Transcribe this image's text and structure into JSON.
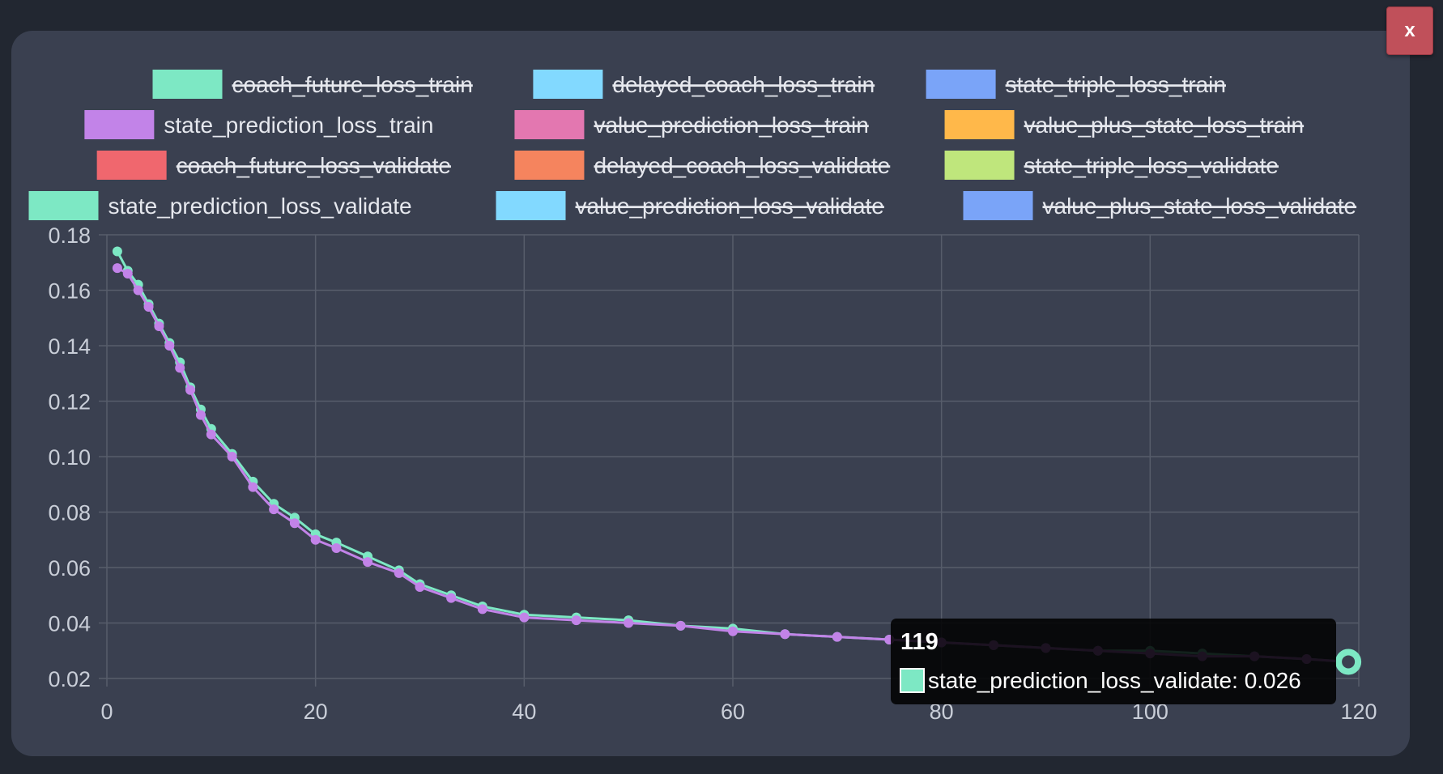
{
  "close_button": {
    "label": "x"
  },
  "chart_data": {
    "type": "line",
    "xlim": [
      0,
      120
    ],
    "ylim": [
      0.02,
      0.18
    ],
    "x_ticks": [
      0,
      20,
      40,
      60,
      80,
      100,
      120
    ],
    "y_ticks": [
      "0.02",
      "0.04",
      "0.06",
      "0.08",
      "0.10",
      "0.12",
      "0.14",
      "0.16",
      "0.18"
    ],
    "grid": true,
    "legend_position": "top",
    "legend": [
      {
        "name": "coach_future_loss_train",
        "color": "#7de8c4",
        "hidden": true
      },
      {
        "name": "delayed_coach_loss_train",
        "color": "#82d9ff",
        "hidden": true
      },
      {
        "name": "state_triple_loss_train",
        "color": "#7aa4f8",
        "hidden": true
      },
      {
        "name": "state_prediction_loss_train",
        "color": "#c283e8",
        "hidden": false
      },
      {
        "name": "value_prediction_loss_train",
        "color": "#e377b0",
        "hidden": true
      },
      {
        "name": "value_plus_state_loss_train",
        "color": "#ffb84a",
        "hidden": true
      },
      {
        "name": "coach_future_loss_validate",
        "color": "#f0676e",
        "hidden": true
      },
      {
        "name": "delayed_coach_loss_validate",
        "color": "#f5845e",
        "hidden": true
      },
      {
        "name": "state_triple_loss_validate",
        "color": "#bfe67c",
        "hidden": true
      },
      {
        "name": "state_prediction_loss_validate",
        "color": "#7de8c4",
        "hidden": false
      },
      {
        "name": "value_prediction_loss_validate",
        "color": "#82d9ff",
        "hidden": true
      },
      {
        "name": "value_plus_state_loss_validate",
        "color": "#7aa4f8",
        "hidden": true
      }
    ],
    "series": [
      {
        "name": "state_prediction_loss_validate",
        "color": "#7de8c4",
        "x": [
          1,
          2,
          3,
          4,
          5,
          6,
          7,
          8,
          9,
          10,
          12,
          14,
          16,
          18,
          20,
          22,
          25,
          28,
          30,
          33,
          36,
          40,
          45,
          50,
          55,
          60,
          65,
          70,
          75,
          80,
          85,
          90,
          95,
          100,
          105,
          110,
          115,
          119
        ],
        "values": [
          0.174,
          0.167,
          0.162,
          0.155,
          0.148,
          0.141,
          0.134,
          0.125,
          0.117,
          0.11,
          0.101,
          0.091,
          0.083,
          0.078,
          0.072,
          0.069,
          0.064,
          0.059,
          0.054,
          0.05,
          0.046,
          0.043,
          0.042,
          0.041,
          0.039,
          0.038,
          0.036,
          0.035,
          0.034,
          0.033,
          0.032,
          0.031,
          0.03,
          0.03,
          0.029,
          0.028,
          0.027,
          0.026
        ]
      },
      {
        "name": "state_prediction_loss_train",
        "color": "#c283e8",
        "x": [
          1,
          2,
          3,
          4,
          5,
          6,
          7,
          8,
          9,
          10,
          12,
          14,
          16,
          18,
          20,
          22,
          25,
          28,
          30,
          33,
          36,
          40,
          45,
          50,
          55,
          60,
          65,
          70,
          75,
          80,
          85,
          90,
          95,
          100,
          105,
          110,
          115,
          119
        ],
        "values": [
          0.168,
          0.166,
          0.16,
          0.154,
          0.147,
          0.14,
          0.132,
          0.124,
          0.115,
          0.108,
          0.1,
          0.089,
          0.081,
          0.076,
          0.07,
          0.067,
          0.062,
          0.058,
          0.053,
          0.049,
          0.045,
          0.042,
          0.041,
          0.04,
          0.039,
          0.037,
          0.036,
          0.035,
          0.034,
          0.033,
          0.032,
          0.031,
          0.03,
          0.029,
          0.028,
          0.028,
          0.027,
          0.026
        ]
      }
    ],
    "tooltip": {
      "title": "119",
      "text": "state_prediction_loss_validate: 0.026",
      "color": "#7de8c4",
      "x": 119,
      "y": 0.026
    }
  }
}
